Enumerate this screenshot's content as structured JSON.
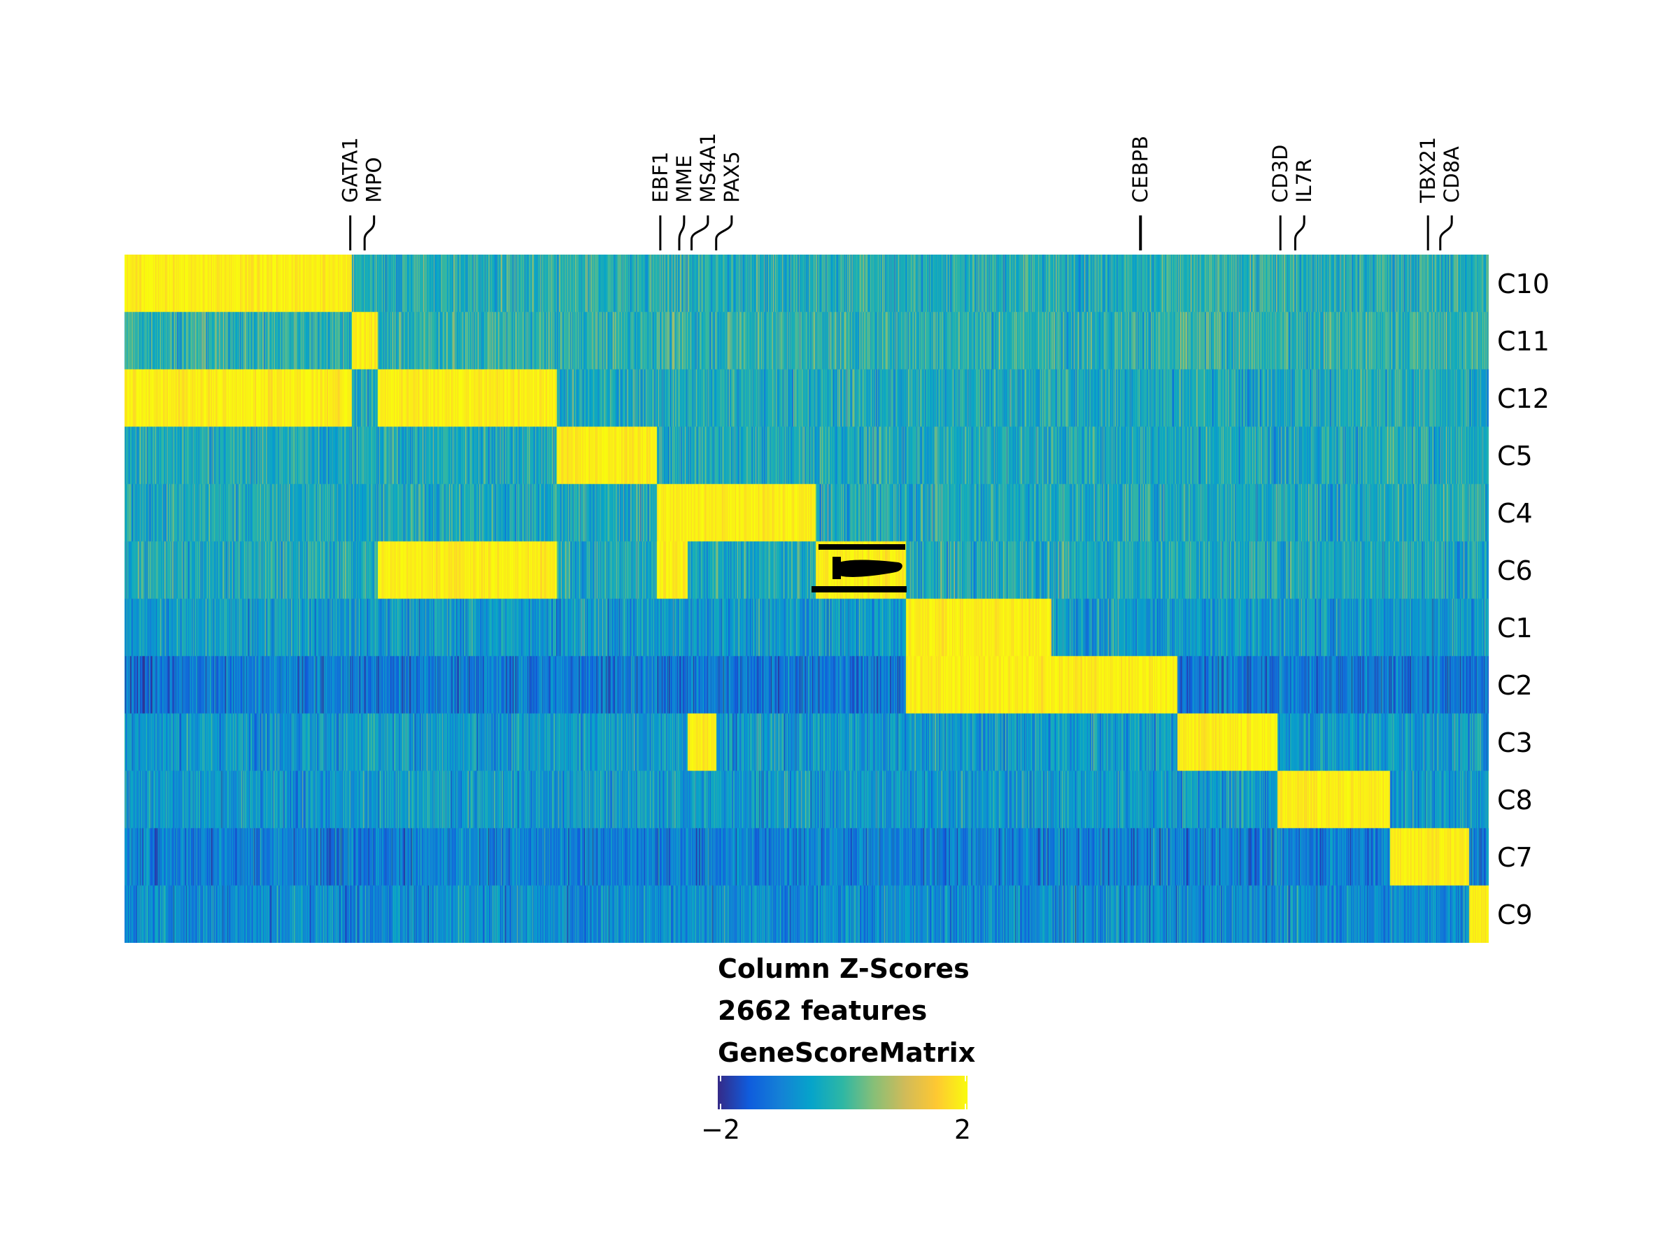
{
  "chart_data": {
    "type": "heatmap",
    "rows": [
      "C10",
      "C11",
      "C12",
      "C5",
      "C4",
      "C6",
      "C1",
      "C2",
      "C3",
      "C8",
      "C7",
      "C9"
    ],
    "column_count": 2662,
    "highlighted_genes": [
      {
        "label": "GATA1",
        "column": 440
      },
      {
        "label": "MPO",
        "column": 468
      },
      {
        "label": "EBF1",
        "column": 1045
      },
      {
        "label": "MME",
        "column": 1082
      },
      {
        "label": "MS4A1",
        "column": 1106
      },
      {
        "label": "PAX5",
        "column": 1154
      },
      {
        "label": "CEBPB",
        "column": 1982
      },
      {
        "label": "CD3D",
        "column": 2255
      },
      {
        "label": "IL7R",
        "column": 2284
      },
      {
        "label": "TBX21",
        "column": 2543
      },
      {
        "label": "CD8A",
        "column": 2567
      }
    ],
    "column_blocks": [
      {
        "start": 0,
        "end": 445,
        "high_in": [
          "C10",
          "C12"
        ]
      },
      {
        "start": 445,
        "end": 495,
        "high_in": [
          "C11"
        ]
      },
      {
        "start": 495,
        "end": 845,
        "high_in": [
          "C12",
          "C6"
        ]
      },
      {
        "start": 845,
        "end": 1040,
        "high_in": [
          "C5"
        ]
      },
      {
        "start": 1040,
        "end": 1100,
        "high_in": [
          "C4",
          "C6"
        ]
      },
      {
        "start": 1100,
        "end": 1155,
        "high_in": [
          "C4",
          "C3"
        ]
      },
      {
        "start": 1155,
        "end": 1350,
        "high_in": [
          "C4"
        ]
      },
      {
        "start": 1350,
        "end": 1525,
        "high_in": [
          "C6"
        ]
      },
      {
        "start": 1525,
        "end": 1810,
        "high_in": [
          "C1",
          "C2"
        ]
      },
      {
        "start": 1810,
        "end": 2055,
        "high_in": [
          "C2"
        ]
      },
      {
        "start": 2055,
        "end": 2250,
        "high_in": [
          "C3"
        ]
      },
      {
        "start": 2250,
        "end": 2470,
        "high_in": [
          "C8"
        ]
      },
      {
        "start": 2470,
        "end": 2625,
        "high_in": [
          "C7"
        ]
      },
      {
        "start": 2625,
        "end": 2662,
        "high_in": [
          "C9"
        ]
      }
    ],
    "legend": {
      "title_lines": [
        "Column Z-Scores",
        "2662 features",
        "GeneScoreMatrix"
      ],
      "min": -2,
      "max": 2,
      "tick_labels": [
        "−2",
        "2"
      ],
      "colors": [
        "#352A87",
        "#0F5CDD",
        "#1481D6",
        "#06A4CA",
        "#2EB7A4",
        "#87BF77",
        "#D1BB59",
        "#FEC832",
        "#F9FB0E"
      ]
    }
  }
}
